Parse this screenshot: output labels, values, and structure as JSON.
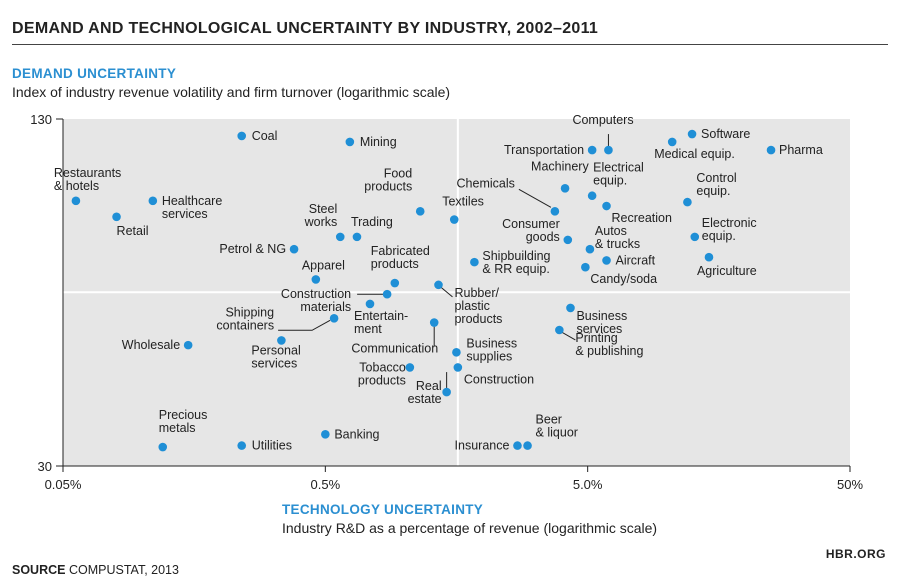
{
  "title": "DEMAND AND TECHNOLOGICAL UNCERTAINTY BY INDUSTRY, 2002–2011",
  "source_label": "SOURCE",
  "source_text": "COMPUSTAT, 2013",
  "brand": "HBR.ORG",
  "colors": {
    "dot": "#1f8fd6",
    "plot_bg": "#e6e6e6",
    "accent": "#2b8fd1"
  },
  "chart_data": {
    "type": "scatter",
    "title": "DEMAND AND TECHNOLOGICAL UNCERTAINTY BY INDUSTRY, 2002–2011",
    "ylabel": "DEMAND UNCERTAINTY",
    "ylabel_sub": "Index of industry revenue volatility and firm turnover (logarithmic scale)",
    "xlabel": "TECHNOLOGY UNCERTAINTY",
    "xlabel_sub": "Industry R&D as a percentage of revenue (logarithmic scale)",
    "x_scale": "log",
    "y_scale": "log",
    "xlim": [
      0.05,
      50
    ],
    "ylim": [
      30,
      130
    ],
    "x_ticks": [
      0.05,
      0.5,
      5,
      50
    ],
    "x_tick_labels": [
      "0.05%",
      "0.5%",
      "5.0%",
      "50%"
    ],
    "y_ticks": [
      30,
      130
    ],
    "y_tick_labels": [
      "30",
      "130"
    ],
    "divider": {
      "x": 1.6,
      "y": 62.5
    },
    "grid": false,
    "points": [
      {
        "name": "Coal",
        "x": 0.24,
        "y": 121
      },
      {
        "name": "Mining",
        "x": 0.62,
        "y": 118
      },
      {
        "name": "Restaurants\n& hotels",
        "x": 0.056,
        "y": 92
      },
      {
        "name": "Healthcare\nservices",
        "x": 0.11,
        "y": 92
      },
      {
        "name": "Retail",
        "x": 0.08,
        "y": 86
      },
      {
        "name": "Food\nproducts",
        "x": 1.15,
        "y": 88
      },
      {
        "name": "Textiles",
        "x": 1.55,
        "y": 85
      },
      {
        "name": "Steel\nworks",
        "x": 0.57,
        "y": 79
      },
      {
        "name": "Trading",
        "x": 0.66,
        "y": 79
      },
      {
        "name": "Petrol & NG",
        "x": 0.38,
        "y": 75
      },
      {
        "name": "Apparel",
        "x": 0.46,
        "y": 66
      },
      {
        "name": "Fabricated\nproducts",
        "x": 0.92,
        "y": 65
      },
      {
        "name": "Construction\nmaterials",
        "x": 0.86,
        "y": 62
      },
      {
        "name": "Entertain-\nment",
        "x": 0.74,
        "y": 59.5
      },
      {
        "name": "Shipping\ncontainers",
        "x": 0.54,
        "y": 56
      },
      {
        "name": "Rubber/\nplastic\nproducts",
        "x": 1.35,
        "y": 64.5
      },
      {
        "name": "Shipbuilding\n& RR equip.",
        "x": 1.85,
        "y": 71
      },
      {
        "name": "Communication",
        "x": 1.3,
        "y": 55
      },
      {
        "name": "Wholesale",
        "x": 0.15,
        "y": 50
      },
      {
        "name": "Personal\nservices",
        "x": 0.34,
        "y": 51
      },
      {
        "name": "Business\nsupplies",
        "x": 1.58,
        "y": 48.5
      },
      {
        "name": "Tobacco\nproducts",
        "x": 1.05,
        "y": 45.5
      },
      {
        "name": "Construction",
        "x": 1.6,
        "y": 45.5
      },
      {
        "name": "Real\nestate",
        "x": 1.45,
        "y": 41
      },
      {
        "name": "Precious\nmetals",
        "x": 0.12,
        "y": 32.5
      },
      {
        "name": "Utilities",
        "x": 0.24,
        "y": 32.7
      },
      {
        "name": "Banking",
        "x": 0.5,
        "y": 34.3
      },
      {
        "name": "Insurance",
        "x": 2.7,
        "y": 32.7
      },
      {
        "name": "Beer\n& liquor",
        "x": 2.95,
        "y": 32.7
      },
      {
        "name": "Computers",
        "x": 6.0,
        "y": 114
      },
      {
        "name": "Software",
        "x": 12.5,
        "y": 122
      },
      {
        "name": "Transportation",
        "x": 5.2,
        "y": 114
      },
      {
        "name": "Medical equip.",
        "x": 10.5,
        "y": 118
      },
      {
        "name": "Pharma",
        "x": 25,
        "y": 114
      },
      {
        "name": "Machinery",
        "x": 4.1,
        "y": 97
      },
      {
        "name": "Chemicals",
        "x": 3.75,
        "y": 88
      },
      {
        "name": "Electrical\nequip.",
        "x": 5.2,
        "y": 94
      },
      {
        "name": "Recreation",
        "x": 5.9,
        "y": 90
      },
      {
        "name": "Control\nequip.",
        "x": 12,
        "y": 91.5
      },
      {
        "name": "Consumer\ngoods",
        "x": 4.2,
        "y": 78
      },
      {
        "name": "Autos\n& trucks",
        "x": 5.1,
        "y": 75
      },
      {
        "name": "Electronic\nequip.",
        "x": 12.8,
        "y": 79
      },
      {
        "name": "Aircraft",
        "x": 5.9,
        "y": 71.5
      },
      {
        "name": "Agriculture",
        "x": 14.5,
        "y": 72.5
      },
      {
        "name": "Candy/soda",
        "x": 4.9,
        "y": 69.5
      },
      {
        "name": "Business\nservices",
        "x": 4.3,
        "y": 58.5
      },
      {
        "name": "Printing\n& publishing",
        "x": 3.9,
        "y": 53.3
      }
    ]
  }
}
